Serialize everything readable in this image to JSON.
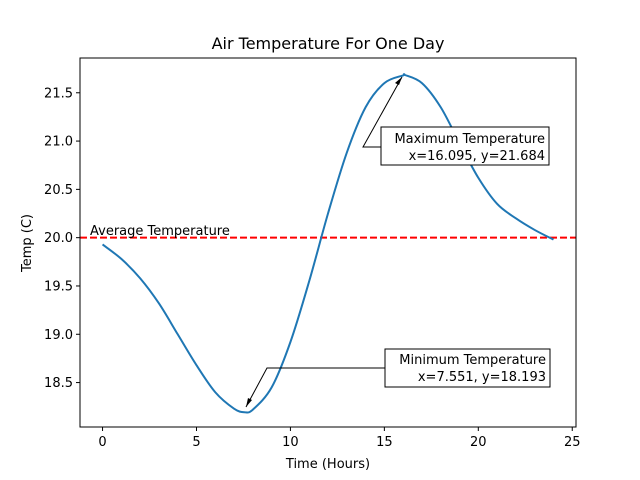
{
  "chart_data": {
    "type": "line",
    "title": "Air Temperature For One Day",
    "xlabel": "Time (Hours)",
    "ylabel": "Temp (C)",
    "xlim": [
      -1.2,
      25.2
    ],
    "ylim": [
      18.04,
      21.86
    ],
    "x_ticks": [
      0,
      5,
      10,
      15,
      20,
      25
    ],
    "y_ticks": [
      18.5,
      19.0,
      19.5,
      20.0,
      20.5,
      21.0,
      21.5
    ],
    "x_tick_labels": [
      "0",
      "5",
      "10",
      "15",
      "20",
      "25"
    ],
    "y_tick_labels": [
      "18.5",
      "19.0",
      "19.5",
      "20.0",
      "20.5",
      "21.0",
      "21.5"
    ],
    "grid": false,
    "series": [
      {
        "color": "#1f77b4",
        "x": [
          0,
          1,
          2,
          3,
          4,
          5,
          6,
          7,
          7.551,
          8,
          9,
          10,
          11,
          12,
          13,
          14,
          15,
          16,
          16.095,
          17,
          18,
          19,
          20,
          21,
          22,
          23,
          24
        ],
        "y": [
          19.93,
          19.78,
          19.58,
          19.32,
          19.0,
          18.68,
          18.4,
          18.23,
          18.193,
          18.22,
          18.45,
          18.92,
          19.55,
          20.25,
          20.88,
          21.35,
          21.6,
          21.68,
          21.684,
          21.6,
          21.35,
          20.98,
          20.62,
          20.35,
          20.2,
          20.08,
          19.98
        ]
      }
    ],
    "reference_line": {
      "y": 20.0,
      "color": "#ff0000",
      "style": "dashed",
      "label": "Average Temperature"
    },
    "annotations": [
      {
        "name": "max",
        "line1": "Maximum Temperature",
        "line2": "x=16.095, y=21.684",
        "point": [
          16.095,
          21.684
        ]
      },
      {
        "name": "min",
        "line1": "Minimum Temperature",
        "line2": "x=7.551, y=18.193",
        "point": [
          7.551,
          18.193
        ]
      }
    ]
  }
}
